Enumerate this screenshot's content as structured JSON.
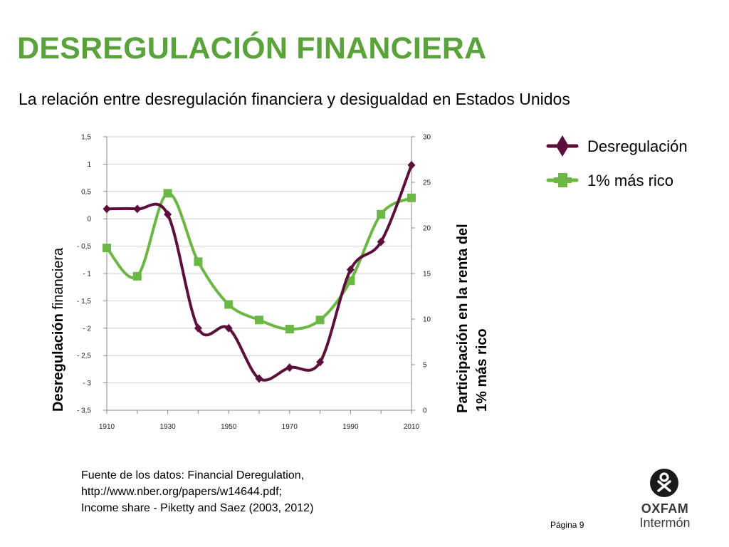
{
  "page": {
    "title": "DESREGULACIÓN FINANCIERA",
    "subtitle": "La relación entre desregulación financiera y desigualdad en Estados Unidos",
    "source_lines": [
      "Fuente de los datos: Financial Deregulation,",
      "http://www.nber.org/papers/w14644.pdf;",
      "Income share - Piketty and Saez (2003, 2012)"
    ],
    "page_number": "Página 9",
    "logo": {
      "line1": "OXFAM",
      "line2": "Intermón"
    }
  },
  "colors": {
    "title": "#5aa33a",
    "deregulation": "#5c0f3a",
    "top1": "#6ab744",
    "axis": "#888888",
    "grid": "#d0d0d0"
  },
  "chart_data": {
    "type": "line",
    "title": "",
    "x": [
      1910,
      1920,
      1930,
      1940,
      1950,
      1960,
      1970,
      1980,
      1990,
      2000,
      2010
    ],
    "xlim": [
      1910,
      2010
    ],
    "x_ticks": [
      "1910",
      "1930",
      "1950",
      "1970",
      "1990",
      "2010"
    ],
    "ylabel_left": {
      "bold": "Desregulación",
      "normal": " financiera"
    },
    "ylabel_right": [
      "Participación en la renta del",
      "1% más rico"
    ],
    "ylim_left": [
      -3.5,
      1.5
    ],
    "ylim_right": [
      0,
      30
    ],
    "y_ticks_left": [
      "1,5",
      "1",
      "0,5",
      "0",
      "- 0,5",
      "- 1",
      "- 1,5",
      "- 2",
      "- 2,5",
      "- 3",
      "- 3,5"
    ],
    "y_ticks_right": [
      "30",
      "25",
      "20",
      "15",
      "10",
      "5",
      "0"
    ],
    "grid": "horizontal",
    "legend_placement": "top-right",
    "series": [
      {
        "name": "Desregulación",
        "axis": "left",
        "marker": "diamond",
        "color": "#5c0f3a",
        "values": [
          0.18,
          0.18,
          0.08,
          -2.0,
          -2.0,
          -2.92,
          -2.72,
          -2.62,
          -0.93,
          -0.42,
          0.98
        ]
      },
      {
        "name": "1% más rico",
        "axis": "right",
        "marker": "square",
        "color": "#6ab744",
        "values": [
          17.8,
          14.7,
          23.8,
          16.3,
          11.6,
          9.9,
          8.9,
          9.9,
          14.2,
          21.5,
          23.3
        ]
      }
    ]
  }
}
